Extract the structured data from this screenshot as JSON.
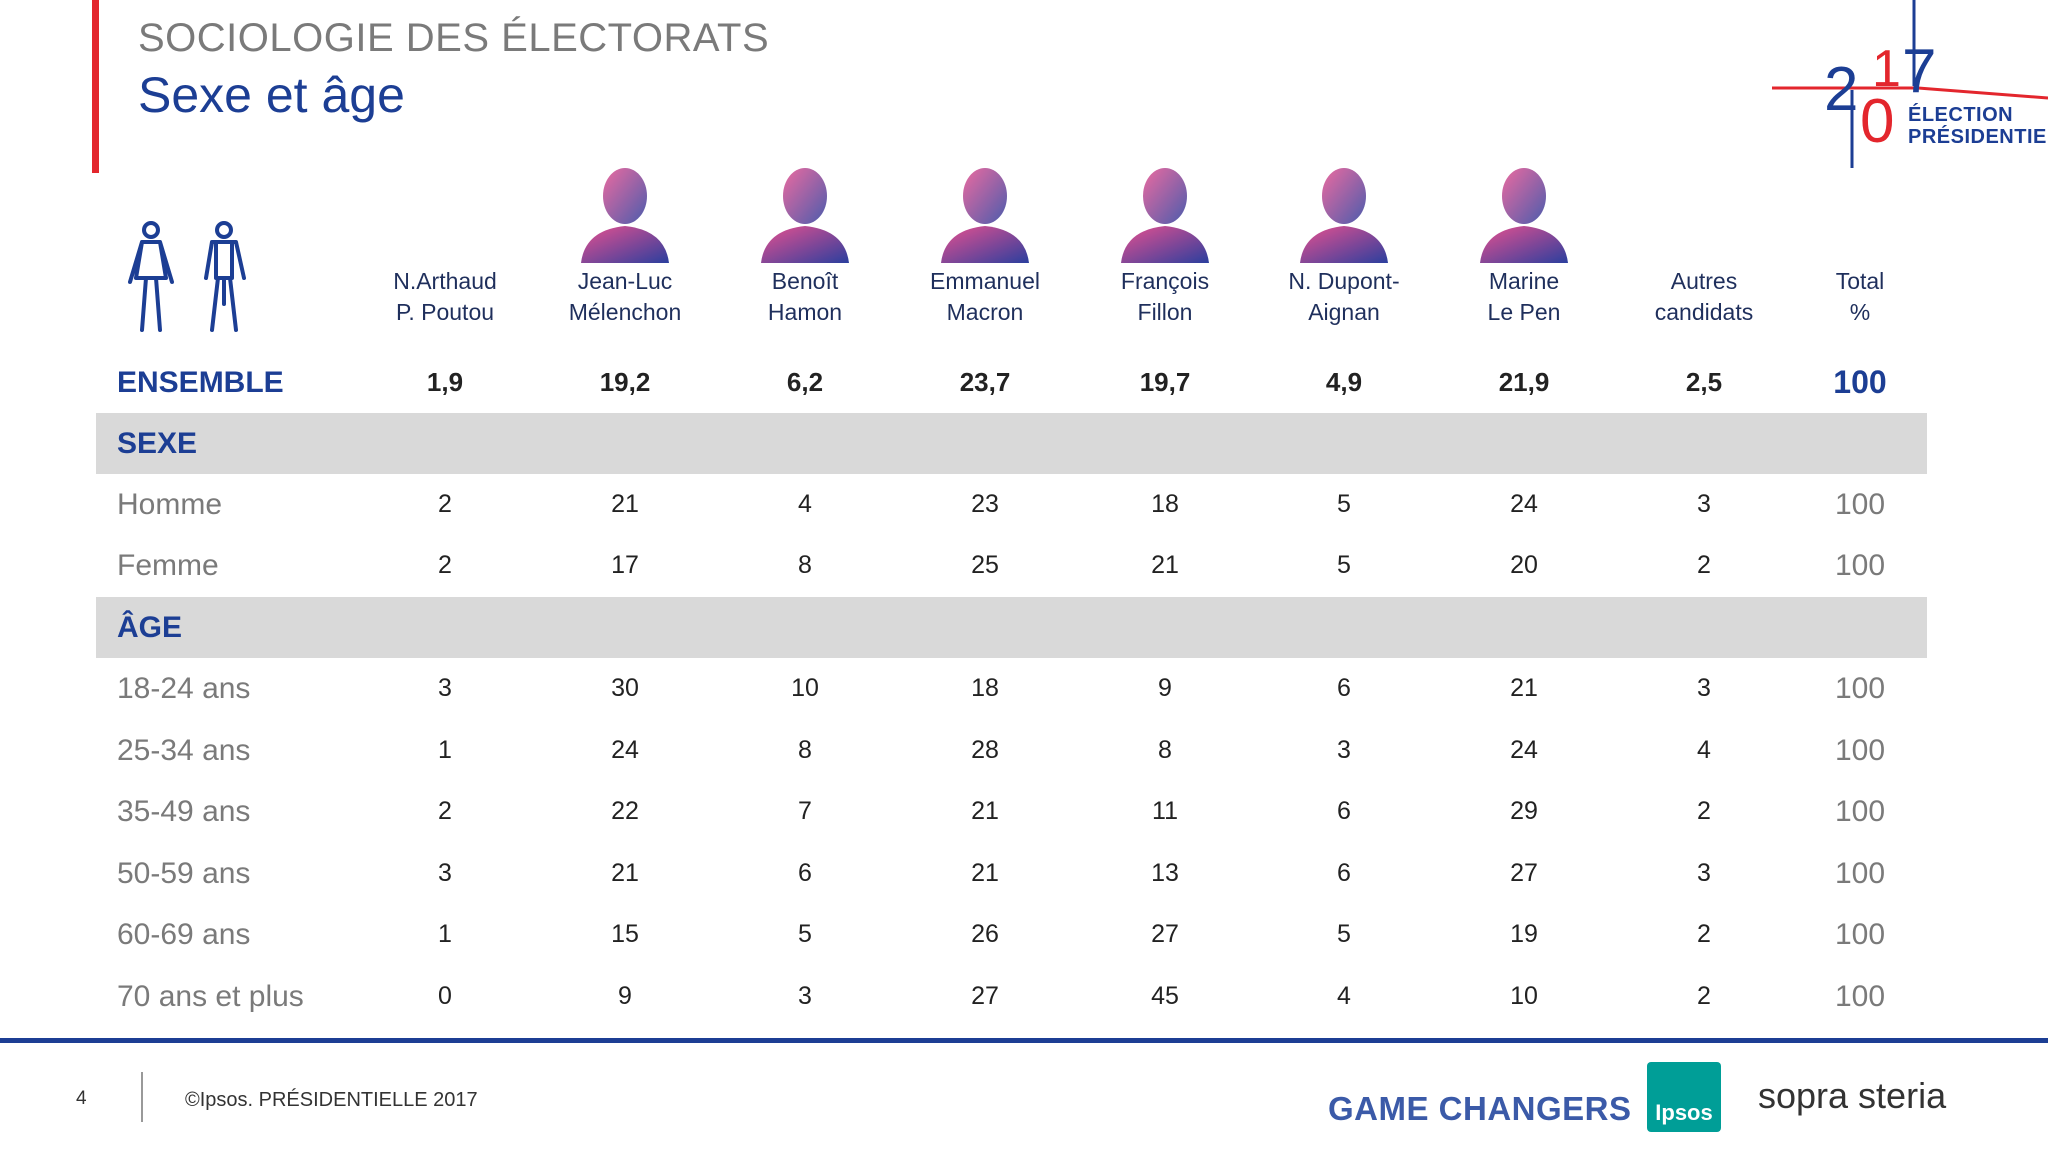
{
  "header": {
    "super_title": "SOCIOLOGIE DES ÉLECTORATS",
    "title": "Sexe et âge"
  },
  "logo": {
    "year_top": "2",
    "year_bottom": "0",
    "year_right1": "1",
    "year_right2": "7",
    "line1": "ÉLECTION",
    "line2": "PRÉSIDENTIELLE"
  },
  "colors": {
    "accent_blue": "#1c3e94",
    "accent_red": "#e3262d",
    "band_gray": "#d9d9d9"
  },
  "columns": [
    {
      "line1": "N.Arthaud",
      "line2": "P. Poutou",
      "photo": false
    },
    {
      "line1": "Jean-Luc",
      "line2": "Mélenchon",
      "photo": true
    },
    {
      "line1": "Benoît",
      "line2": "Hamon",
      "photo": true
    },
    {
      "line1": "Emmanuel",
      "line2": "Macron",
      "photo": true
    },
    {
      "line1": "François",
      "line2": "Fillon",
      "photo": true
    },
    {
      "line1": "N. Dupont-",
      "line2": "Aignan",
      "photo": true
    },
    {
      "line1": "Marine",
      "line2": "Le Pen",
      "photo": true
    },
    {
      "line1": "Autres",
      "line2": "candidats",
      "photo": false
    },
    {
      "line1": "Total",
      "line2": "%",
      "photo": false
    }
  ],
  "chart_data": {
    "type": "table",
    "rows": [
      {
        "kind": "total",
        "label": "ENSEMBLE",
        "values": [
          "1,9",
          "19,2",
          "6,2",
          "23,7",
          "19,7",
          "4,9",
          "21,9",
          "2,5",
          "100"
        ]
      },
      {
        "kind": "section",
        "label": "SEXE"
      },
      {
        "kind": "data",
        "label": "Homme",
        "values": [
          "2",
          "21",
          "4",
          "23",
          "18",
          "5",
          "24",
          "3",
          "100"
        ]
      },
      {
        "kind": "data",
        "label": "Femme",
        "values": [
          "2",
          "17",
          "8",
          "25",
          "21",
          "5",
          "20",
          "2",
          "100"
        ]
      },
      {
        "kind": "section",
        "label": "ÂGE"
      },
      {
        "kind": "data",
        "label": "18-24 ans",
        "values": [
          "3",
          "30",
          "10",
          "18",
          "9",
          "6",
          "21",
          "3",
          "100"
        ]
      },
      {
        "kind": "data",
        "label": "25-34 ans",
        "values": [
          "1",
          "24",
          "8",
          "28",
          "8",
          "3",
          "24",
          "4",
          "100"
        ]
      },
      {
        "kind": "data",
        "label": "35-49 ans",
        "values": [
          "2",
          "22",
          "7",
          "21",
          "11",
          "6",
          "29",
          "2",
          "100"
        ]
      },
      {
        "kind": "data",
        "label": "50-59 ans",
        "values": [
          "3",
          "21",
          "6",
          "21",
          "13",
          "6",
          "27",
          "3",
          "100"
        ]
      },
      {
        "kind": "data",
        "label": "60-69 ans",
        "values": [
          "1",
          "15",
          "5",
          "26",
          "27",
          "5",
          "19",
          "2",
          "100"
        ]
      },
      {
        "kind": "data",
        "label": "70 ans et plus",
        "values": [
          "0",
          "9",
          "3",
          "27",
          "45",
          "4",
          "10",
          "2",
          "100"
        ]
      }
    ]
  },
  "footer": {
    "page_number": "4",
    "copyright": "©Ipsos.  PRÉSIDENTIELLE 2017",
    "game_changers": "GAME CHANGERS",
    "ipsos": "Ipsos",
    "sopra": "sopra steria"
  }
}
